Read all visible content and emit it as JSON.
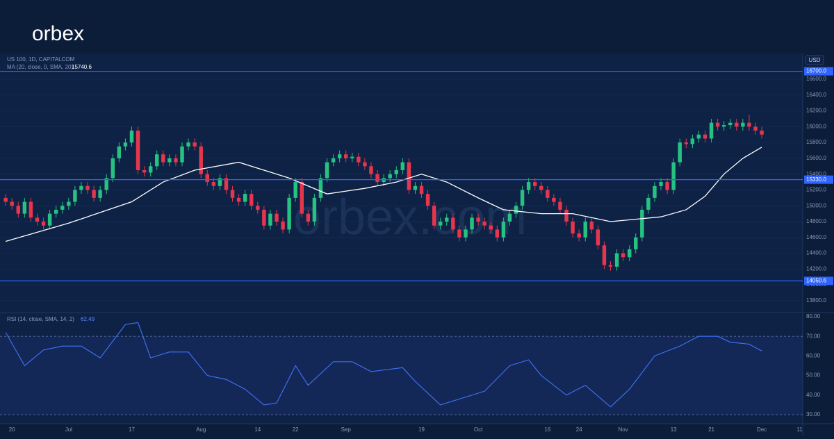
{
  "logo": "orbex",
  "watermark": "orbex.com",
  "chart_data": [
    {
      "type": "candlestick",
      "title": "US 100, 1D, CAPITALCOM",
      "currency": "USD",
      "up_color": "#26c281",
      "down_color": "#e5364d",
      "xlim": [
        -0.9,
        126.5
      ],
      "ylim": [
        13650,
        16925
      ],
      "xticks": [
        {
          "value": 1,
          "label": "20"
        },
        {
          "value": 10,
          "label": "Jul"
        },
        {
          "value": 20,
          "label": "17"
        },
        {
          "value": 31,
          "label": "Aug"
        },
        {
          "value": 40,
          "label": "14"
        },
        {
          "value": 46,
          "label": "22"
        },
        {
          "value": 54,
          "label": "Sep"
        },
        {
          "value": 66,
          "label": "19"
        },
        {
          "value": 75,
          "label": "Oct"
        },
        {
          "value": 86,
          "label": "16"
        },
        {
          "value": 91,
          "label": "24"
        },
        {
          "value": 98,
          "label": "Nov"
        },
        {
          "value": 106,
          "label": "13"
        },
        {
          "value": 112,
          "label": "21"
        },
        {
          "value": 120,
          "label": "Dec"
        },
        {
          "value": 126,
          "label": "11"
        }
      ],
      "yticks": [
        {
          "value": 13800,
          "label": "13800.0"
        },
        {
          "value": 14000,
          "label": "14000.0"
        },
        {
          "value": 14200,
          "label": "14200.0"
        },
        {
          "value": 14400,
          "label": "14400.0"
        },
        {
          "value": 14600,
          "label": "14600.0"
        },
        {
          "value": 14800,
          "label": "14800.0"
        },
        {
          "value": 15000,
          "label": "15000.0"
        },
        {
          "value": 15200,
          "label": "15200.0"
        },
        {
          "value": 15400,
          "label": "15400.0"
        },
        {
          "value": 15600,
          "label": "15600.0"
        },
        {
          "value": 15800,
          "label": "15800.0"
        },
        {
          "value": 16000,
          "label": "16000.0"
        },
        {
          "value": 16200,
          "label": "16200.0"
        },
        {
          "value": 16400,
          "label": "16400.0"
        },
        {
          "value": 16600,
          "label": "16600.0"
        }
      ],
      "levels": [
        {
          "value": 16700,
          "label": "16700.0"
        },
        {
          "value": 15330,
          "label": "15330.0"
        },
        {
          "value": 14050.6,
          "label": "14050.6"
        }
      ],
      "level_color": "#2f63ff",
      "open": [
        15100,
        15050,
        15000,
        14900,
        15050,
        14850,
        14800,
        14750,
        14900,
        14950,
        15000,
        15050,
        15200,
        15250,
        15200,
        15100,
        15200,
        15350,
        15600,
        15750,
        15800,
        15950,
        15450,
        15420,
        15500,
        15650,
        15550,
        15600,
        15550,
        15750,
        15800,
        15750,
        15400,
        15300,
        15250,
        15350,
        15200,
        15100,
        15050,
        15150,
        15000,
        14950,
        14750,
        14900,
        14800,
        14700,
        15100,
        15300,
        14900,
        14800,
        15100,
        15350,
        15550,
        15600,
        15650,
        15600,
        15620,
        15550,
        15500,
        15400,
        15300,
        15350,
        15400,
        15450,
        15550,
        15200,
        15250,
        15150,
        15000,
        14750,
        14800,
        14850,
        14700,
        14600,
        14700,
        14850,
        14800,
        14750,
        14700,
        14600,
        14800,
        14900,
        15000,
        15200,
        15300,
        15250,
        15200,
        15100,
        15050,
        14950,
        14800,
        14650,
        14600,
        14800,
        14700,
        14500,
        14250,
        14230,
        14400,
        14350,
        14450,
        14600,
        14950,
        15100,
        15250,
        15300,
        15200,
        15550,
        15800,
        15780,
        15850,
        15900,
        15850,
        16050,
        16000,
        16020,
        16050,
        16000,
        16050,
        16000,
        15950
      ],
      "high": [
        15150,
        15100,
        15050,
        15100,
        15100,
        14900,
        14850,
        14950,
        15000,
        15050,
        15100,
        15250,
        15300,
        15300,
        15250,
        15250,
        15400,
        15650,
        15800,
        15850,
        16000,
        16000,
        15500,
        15550,
        15700,
        15700,
        15650,
        15650,
        15800,
        15850,
        15850,
        15800,
        15450,
        15350,
        15400,
        15400,
        15250,
        15150,
        15200,
        15200,
        15050,
        15000,
        14950,
        14950,
        14850,
        15150,
        15350,
        15350,
        14950,
        15150,
        15400,
        15600,
        15650,
        15700,
        15700,
        15670,
        15670,
        15600,
        15550,
        15450,
        15400,
        15450,
        15500,
        15600,
        15600,
        15300,
        15300,
        15200,
        15050,
        14850,
        14900,
        14900,
        14750,
        14750,
        14900,
        14900,
        14850,
        14800,
        14750,
        14850,
        14950,
        15050,
        15250,
        15350,
        15350,
        15300,
        15250,
        15150,
        15100,
        15000,
        14850,
        14700,
        14850,
        14850,
        14750,
        14550,
        14300,
        14450,
        14450,
        14500,
        14650,
        15000,
        15150,
        15300,
        15350,
        15350,
        15600,
        15850,
        15850,
        15900,
        15950,
        15950,
        16100,
        16100,
        16070,
        16100,
        16100,
        16100,
        16150,
        16050,
        16000
      ],
      "low": [
        15000,
        14950,
        14850,
        14850,
        14800,
        14750,
        14700,
        14700,
        14850,
        14900,
        14950,
        15000,
        15150,
        15150,
        15050,
        15050,
        15150,
        15300,
        15550,
        15700,
        15750,
        15400,
        15370,
        15370,
        15450,
        15500,
        15500,
        15500,
        15500,
        15700,
        15700,
        15350,
        15250,
        15200,
        15200,
        15150,
        15050,
        15000,
        15000,
        14950,
        14900,
        14700,
        14700,
        14750,
        14650,
        14650,
        15050,
        14850,
        14750,
        14750,
        15050,
        15300,
        15500,
        15550,
        15550,
        15550,
        15500,
        15450,
        15350,
        15250,
        15250,
        15300,
        15350,
        15400,
        15150,
        15150,
        15100,
        14950,
        14700,
        14700,
        14750,
        14650,
        14550,
        14550,
        14650,
        14750,
        14700,
        14650,
        14550,
        14550,
        14750,
        14850,
        14950,
        15150,
        15200,
        15150,
        15050,
        15000,
        14900,
        14750,
        14600,
        14550,
        14550,
        14650,
        14450,
        14200,
        14180,
        14180,
        14300,
        14300,
        14400,
        14550,
        14900,
        15050,
        15200,
        15150,
        15150,
        15500,
        15730,
        15730,
        15800,
        15800,
        15800,
        15950,
        15950,
        15970,
        15950,
        15950,
        15950,
        15900,
        15850
      ],
      "close": [
        15050,
        15000,
        14900,
        15050,
        14850,
        14800,
        14750,
        14900,
        14950,
        15000,
        15050,
        15200,
        15250,
        15200,
        15100,
        15200,
        15350,
        15600,
        15750,
        15800,
        15950,
        15450,
        15420,
        15500,
        15650,
        15550,
        15600,
        15550,
        15750,
        15800,
        15750,
        15400,
        15300,
        15250,
        15350,
        15200,
        15100,
        15050,
        15150,
        15000,
        14950,
        14750,
        14900,
        14800,
        14700,
        15100,
        15300,
        14900,
        14800,
        15100,
        15350,
        15550,
        15600,
        15650,
        15600,
        15620,
        15550,
        15500,
        15400,
        15300,
        15350,
        15400,
        15450,
        15550,
        15200,
        15250,
        15150,
        15000,
        14750,
        14800,
        14850,
        14700,
        14600,
        14700,
        14850,
        14800,
        14750,
        14700,
        14600,
        14800,
        14900,
        15000,
        15200,
        15300,
        15250,
        15200,
        15100,
        15050,
        14950,
        14800,
        14650,
        14600,
        14800,
        14700,
        14500,
        14250,
        14230,
        14400,
        14350,
        14450,
        14600,
        14950,
        15100,
        15250,
        15300,
        15200,
        15550,
        15800,
        15780,
        15850,
        15900,
        15850,
        16050,
        16000,
        16020,
        16050,
        16000,
        16050,
        16000,
        15950,
        15900
      ],
      "overlay": {
        "name": "MA (20, close, 0, SMA, 20)",
        "color": "#ffffff",
        "x": [
          0,
          10,
          20,
          25,
          30,
          37,
          45,
          51,
          57,
          62,
          66,
          70,
          75,
          79,
          85,
          90,
          96,
          100,
          104,
          108,
          111,
          114,
          117,
          120
        ],
        "values": [
          14550,
          14780,
          15050,
          15300,
          15450,
          15550,
          15350,
          15150,
          15220,
          15300,
          15400,
          15300,
          15100,
          14950,
          14900,
          14900,
          14800,
          14830,
          14860,
          14950,
          15120,
          15400,
          15600,
          15740.6
        ]
      }
    },
    {
      "type": "line",
      "title": "RSI (14, close, SMA, 14, 2)",
      "xlim": [
        -0.9,
        126.5
      ],
      "ylim": [
        25.4,
        82.1
      ],
      "yticks": [
        {
          "value": 30,
          "label": "30.00"
        },
        {
          "value": 40,
          "label": "40.00"
        },
        {
          "value": 50,
          "label": "50.00"
        },
        {
          "value": 60,
          "label": "60.00"
        },
        {
          "value": 70,
          "label": "70.00"
        },
        {
          "value": 80,
          "label": "80.00"
        }
      ],
      "band": [
        30,
        70
      ],
      "series": [
        {
          "name": "RSI",
          "color": "#3d6ef0",
          "x": [
            0,
            3,
            6,
            9,
            12,
            15,
            19,
            21,
            23,
            26,
            29,
            32,
            35,
            38,
            41,
            43,
            46,
            48,
            52,
            55,
            58,
            63,
            65,
            69,
            72,
            76,
            80,
            83,
            85,
            89,
            92,
            96,
            99,
            103,
            107,
            110,
            113,
            115,
            118,
            120
          ],
          "values": [
            72,
            55,
            63,
            65,
            65,
            59,
            76,
            77,
            59,
            62,
            62,
            50,
            48,
            43,
            35,
            36,
            55,
            45,
            57,
            57,
            52,
            54,
            47,
            35,
            38,
            42,
            55,
            58,
            50,
            40,
            45,
            34,
            43,
            60,
            65,
            70,
            70,
            67,
            66,
            62.49
          ]
        }
      ]
    }
  ]
}
